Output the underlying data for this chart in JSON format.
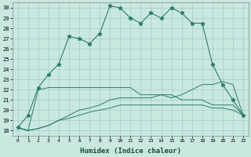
{
  "xlabel": "Humidex (Indice chaleur)",
  "bg_color": "#c8e8e0",
  "grid_color": "#a8ccc4",
  "line_color": "#2e7d6e",
  "ylim": [
    17.5,
    30.5
  ],
  "yticks": [
    18,
    19,
    20,
    21,
    22,
    23,
    24,
    25,
    26,
    27,
    28,
    29,
    30
  ],
  "xticks": [
    0,
    1,
    2,
    3,
    4,
    5,
    6,
    7,
    8,
    9,
    10,
    11,
    12,
    13,
    14,
    15,
    16,
    17,
    18,
    19,
    20,
    21,
    22
  ],
  "series": [
    {
      "x": [
        0,
        1,
        2,
        3,
        4,
        5,
        6,
        7,
        8,
        9,
        10,
        11,
        12,
        13,
        14,
        15,
        16,
        17,
        18,
        19,
        20,
        21,
        22
      ],
      "y": [
        18.3,
        19.5,
        22.2,
        23.5,
        24.5,
        27.2,
        27.0,
        26.5,
        27.5,
        30.2,
        30.0,
        29.0,
        28.5,
        29.5,
        29.0,
        30.0,
        29.5,
        28.5,
        28.5,
        24.5,
        22.5,
        21.0,
        19.5
      ],
      "marker": true
    },
    {
      "x": [
        0,
        1,
        2,
        3,
        4,
        5,
        6,
        7,
        8,
        9,
        10,
        11,
        12,
        13,
        14,
        15,
        16,
        17,
        18,
        19,
        20,
        21,
        22
      ],
      "y": [
        18.3,
        18.0,
        22.0,
        22.2,
        22.2,
        22.2,
        22.2,
        22.2,
        22.2,
        22.2,
        22.2,
        22.2,
        21.5,
        21.5,
        21.5,
        21.5,
        21.0,
        21.0,
        21.0,
        20.5,
        20.5,
        20.5,
        19.5
      ],
      "marker": false
    },
    {
      "x": [
        0,
        1,
        2,
        3,
        4,
        5,
        6,
        7,
        8,
        9,
        10,
        11,
        12,
        13,
        14,
        15,
        16,
        17,
        18,
        19,
        20,
        21,
        22
      ],
      "y": [
        18.3,
        18.0,
        18.2,
        18.5,
        19.0,
        19.5,
        20.0,
        20.2,
        20.5,
        21.0,
        21.2,
        21.2,
        21.2,
        21.2,
        21.5,
        21.2,
        21.5,
        22.0,
        22.5,
        22.5,
        22.8,
        22.5,
        19.5
      ],
      "marker": false
    },
    {
      "x": [
        0,
        1,
        2,
        3,
        4,
        5,
        6,
        7,
        8,
        9,
        10,
        11,
        12,
        13,
        14,
        15,
        16,
        17,
        18,
        19,
        20,
        21,
        22
      ],
      "y": [
        18.3,
        18.0,
        18.2,
        18.5,
        19.0,
        19.2,
        19.5,
        19.8,
        20.0,
        20.2,
        20.5,
        20.5,
        20.5,
        20.5,
        20.5,
        20.5,
        20.5,
        20.5,
        20.5,
        20.2,
        20.2,
        20.0,
        19.5
      ],
      "marker": false
    }
  ]
}
